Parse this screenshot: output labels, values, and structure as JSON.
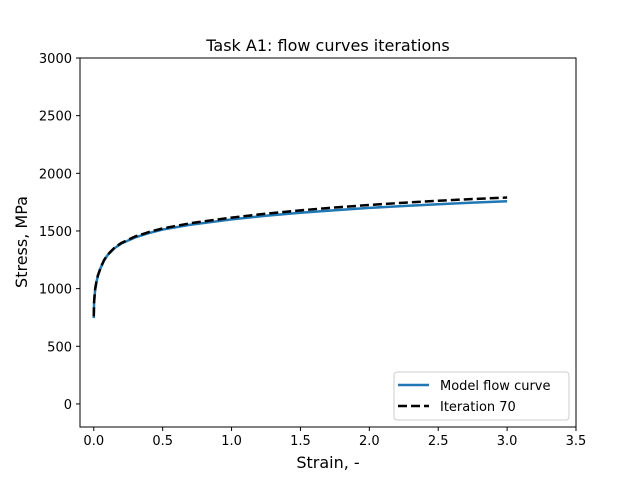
{
  "chart_data": {
    "type": "line",
    "title": "Task A1: flow curves iterations",
    "xlabel": "Strain, -",
    "ylabel": "Stress, MPa",
    "xlim": [
      -0.1,
      3.5
    ],
    "ylim": [
      -200,
      3000
    ],
    "xticks": [
      "0.0",
      "0.5",
      "1.0",
      "1.5",
      "2.0",
      "2.5",
      "3.0",
      "3.5"
    ],
    "yticks": [
      "0",
      "500",
      "1000",
      "1500",
      "2000",
      "2500",
      "3000"
    ],
    "grid": false,
    "legend_position": "lower-right",
    "series": [
      {
        "name": "Model flow curve",
        "color": "#1f77b4",
        "style": "solid",
        "x": [
          0.0,
          0.002,
          0.005,
          0.01,
          0.02,
          0.03,
          0.05,
          0.075,
          0.1,
          0.15,
          0.2,
          0.3,
          0.4,
          0.5,
          0.7,
          1.0,
          1.25,
          1.5,
          1.75,
          2.0,
          2.25,
          2.5,
          2.75,
          3.0
        ],
        "y": [
          745,
          868,
          920,
          990,
          1060,
          1112,
          1180,
          1245,
          1290,
          1350,
          1391,
          1444,
          1482,
          1512,
          1554,
          1600,
          1632,
          1658,
          1680,
          1700,
          1717,
          1732,
          1746,
          1758
        ]
      },
      {
        "name": "Iteration 70",
        "color": "#000000",
        "style": "dashed",
        "x": [
          0.0,
          0.002,
          0.005,
          0.01,
          0.02,
          0.03,
          0.05,
          0.075,
          0.1,
          0.15,
          0.2,
          0.3,
          0.4,
          0.5,
          0.7,
          1.0,
          1.25,
          1.5,
          1.75,
          2.0,
          2.25,
          2.5,
          2.75,
          3.0
        ],
        "y": [
          760,
          880,
          930,
          998,
          1065,
          1115,
          1183,
          1248,
          1294,
          1354,
          1396,
          1452,
          1491,
          1522,
          1567,
          1616,
          1650,
          1679,
          1704,
          1725,
          1745,
          1762,
          1777,
          1790
        ]
      }
    ]
  }
}
